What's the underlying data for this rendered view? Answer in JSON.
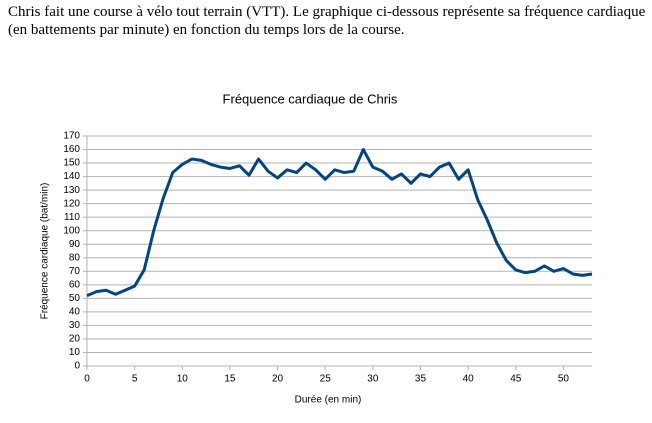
{
  "text": [
    "Chris fait une course à vélo tout terrain (VTT). Le graphique ci-dessous représente sa fréquence cardiaque",
    "(en battements par minute) en fonction du temps lors de la course."
  ],
  "chart_data": {
    "type": "line",
    "title": "Fréquence cardiaque de Chris",
    "x_label": "Durée (en min)",
    "y_label": "Fréquence cardiaque (bat/min)",
    "x": [
      0,
      1,
      2,
      3,
      4,
      5,
      6,
      7,
      8,
      9,
      10,
      11,
      12,
      13,
      14,
      15,
      16,
      17,
      18,
      19,
      20,
      21,
      22,
      23,
      24,
      25,
      26,
      27,
      28,
      29,
      30,
      31,
      32,
      33,
      34,
      35,
      36,
      37,
      38,
      39,
      40,
      41,
      42,
      43,
      44,
      45,
      46,
      47,
      48,
      49,
      50,
      51,
      52,
      53
    ],
    "values": [
      52,
      55,
      56,
      53,
      56,
      59,
      71,
      100,
      124,
      143,
      149,
      153,
      152,
      149,
      147,
      146,
      148,
      141,
      153,
      144,
      139,
      145,
      143,
      150,
      145,
      138,
      145,
      143,
      144,
      160,
      147,
      144,
      138,
      142,
      135,
      142,
      140,
      147,
      150,
      138,
      145,
      123,
      108,
      91,
      78,
      71,
      69,
      70,
      74,
      70,
      72,
      68,
      67,
      68
    ],
    "color": "#004586",
    "xlim": [
      0,
      53
    ],
    "xticks": [
      0,
      5,
      10,
      15,
      20,
      25,
      30,
      35,
      40,
      45,
      50
    ],
    "ylim": [
      0,
      170
    ],
    "yticks": [
      0,
      10,
      20,
      30,
      40,
      50,
      60,
      70,
      80,
      90,
      100,
      110,
      120,
      130,
      140,
      150,
      160,
      170
    ],
    "grid": true
  }
}
